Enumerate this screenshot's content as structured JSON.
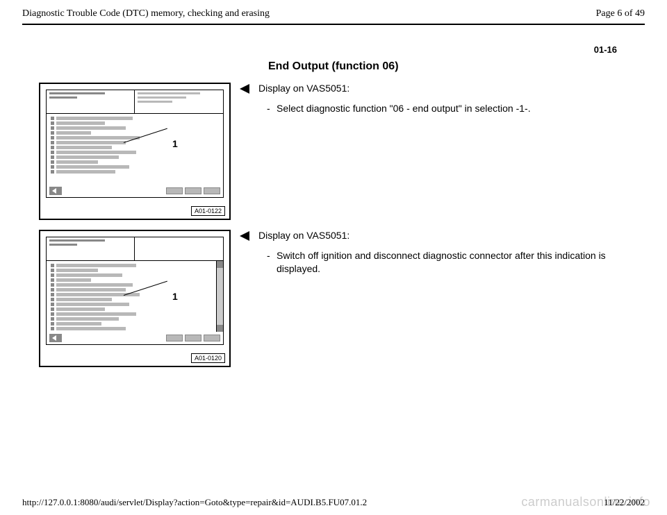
{
  "header": {
    "title": "Diagnostic Trouble Code (DTC) memory, checking and erasing",
    "page_of": "Page 6 of 49"
  },
  "section_number": "01-16",
  "section_title": "End Output (function 06)",
  "blocks": [
    {
      "figure": {
        "label": "A01-0122",
        "callout_number": "1",
        "has_scrollbar": false,
        "row_widths": [
          110,
          70,
          100,
          50,
          120,
          100,
          80,
          115,
          90,
          60,
          105,
          85
        ],
        "hdr_left_bars": [
          80,
          40
        ],
        "hdr_right_bars": [
          90,
          70,
          50
        ]
      },
      "lead": "Display on VAS5051:",
      "bullets": [
        "Select diagnostic function \"06 - end output\" in selection -1-."
      ]
    },
    {
      "figure": {
        "label": "A01-0120",
        "callout_number": "1",
        "has_scrollbar": true,
        "row_widths": [
          115,
          60,
          95,
          50,
          110,
          100,
          120,
          80,
          105,
          70,
          115,
          90,
          65,
          100
        ],
        "hdr_left_bars": [
          80,
          40
        ],
        "hdr_right_bars": []
      },
      "lead": "Display on VAS5051:",
      "bullets": [
        "Switch off ignition and disconnect diagnostic connector after this indication is displayed."
      ]
    }
  ],
  "footer": {
    "url": "http://127.0.0.1:8080/audi/servlet/Display?action=Goto&type=repair&id=AUDI.B5.FU07.01.2",
    "date": "11/22/2002"
  },
  "watermark": "carmanualsonline.info",
  "colors": {
    "bar_light": "#b8b8b8",
    "bar_dark": "#888888",
    "text": "#000000",
    "bg": "#ffffff",
    "wm": "#cccccc"
  }
}
